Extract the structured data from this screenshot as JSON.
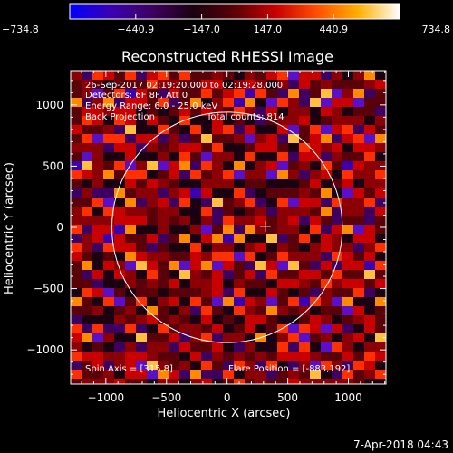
{
  "chart_data": {
    "type": "heatmap",
    "title": "Reconstructed RHESSI Image",
    "xlabel": "Heliocentric X (arcsec)",
    "ylabel": "Heliocentric Y (arcsec)",
    "xlim": [
      -1290,
      1310
    ],
    "ylim": [
      -1280,
      1280
    ],
    "xticks": [
      -1000,
      -500,
      0,
      500,
      1000
    ],
    "yticks": [
      -1000,
      -500,
      0,
      500,
      1000
    ],
    "colorbar": {
      "range": [
        -734.8,
        734.8
      ],
      "tick_values": [
        -734.8,
        -440.9,
        -147.0,
        147.0,
        440.9,
        734.8
      ],
      "tick_labels": [
        "−734.8",
        "−440.9",
        "−147.0",
        "147.0",
        "440.9",
        "734.8"
      ],
      "colors": [
        "#0000ff",
        "#3a00b0",
        "#3d0060",
        "#1a0010",
        "#5a0008",
        "#c80000",
        "#ff5000",
        "#ffb000",
        "#ffffff"
      ]
    },
    "annotations": [
      "26-Sep-2017 02:19:20.000 to 02:19:28.000",
      "Detectors: 6F 8F, Att 0",
      "Energy Range: 6.0 - 25.0 keV",
      "Back Projection",
      "Total counts: 814"
    ],
    "spin_axis_label": "Spin Axis = [315,8]",
    "flare_position_label": "Flare Position = [-883,192]",
    "spin_axis": [
      315,
      8
    ],
    "flare_position": [
      -883,
      192
    ],
    "solar_limb_radius_arcsec": 950,
    "colors": {
      "limb": "#ffffff",
      "axes": "#ffffff",
      "background": "#000000"
    }
  },
  "footer": {
    "timestamp": "7-Apr-2018 04:43"
  }
}
